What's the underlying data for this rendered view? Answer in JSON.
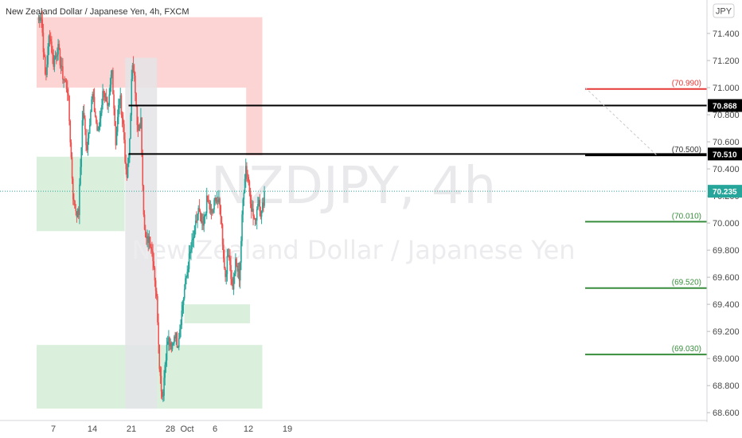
{
  "header": {
    "symbol_line": "New Zealand Dollar / Japanese Yen, 4h, FXCM",
    "currency_button": "JPY"
  },
  "watermark": {
    "symbol": "NZDJPY, 4h",
    "name": "New Zealand Dollar / Japanese Yen"
  },
  "colors": {
    "up": "#26a69a",
    "down": "#ef5350",
    "supply_zone": "#fccfce",
    "demand_zone": "#d6eed9",
    "gray_zone": "#e4e4e8",
    "resistance_line": "#e53935",
    "support_line": "#388e3c",
    "black_line": "#000000",
    "price_badge": "#26a69a"
  },
  "chart_data": {
    "type": "candlestick",
    "title": "New Zealand Dollar / Japanese Yen, 4h, FXCM",
    "y_axis": {
      "ylim": [
        68.56,
        71.6
      ],
      "ticks": [
        "71.400",
        "71.200",
        "71.000",
        "70.800",
        "70.600",
        "70.400",
        "70.200",
        "70.000",
        "69.800",
        "69.600",
        "69.400",
        "69.200",
        "69.000",
        "68.800",
        "68.600"
      ]
    },
    "x_axis": {
      "range_days": [
        "Sep 4",
        "Oct 21"
      ],
      "ticks": [
        {
          "label": "7",
          "day": 7
        },
        {
          "label": "14",
          "day": 14
        },
        {
          "label": "21",
          "day": 21
        },
        {
          "label": "28",
          "day": 28
        },
        {
          "label": "Oct",
          "day": 31
        },
        {
          "label": "6",
          "day": 36
        },
        {
          "label": "12",
          "day": 42
        },
        {
          "label": "19",
          "day": 49
        }
      ]
    },
    "zones": [
      {
        "kind": "supply",
        "from_day": 4,
        "to_day": 44.5,
        "y_low": 71.0,
        "y_high": 71.52
      },
      {
        "kind": "supply",
        "from_day": 41.6,
        "to_day": 44.5,
        "y_low": 70.5,
        "y_high": 71.0
      },
      {
        "kind": "demand",
        "from_day": 4,
        "to_day": 19.8,
        "y_low": 69.94,
        "y_high": 70.49
      },
      {
        "kind": "demand",
        "from_day": 20,
        "to_day": 44.5,
        "y_low": 68.63,
        "y_high": 69.1
      },
      {
        "kind": "demand",
        "from_day": 4,
        "to_day": 20,
        "y_low": 68.63,
        "y_high": 69.1
      },
      {
        "kind": "demand",
        "from_day": 30.5,
        "to_day": 42.3,
        "y_low": 69.26,
        "y_high": 69.4
      },
      {
        "kind": "gray",
        "from_day": 19.9,
        "to_day": 25.6,
        "y_low": 68.63,
        "y_high": 71.22
      }
    ],
    "levels": [
      {
        "label": "(70.990)",
        "value": 70.99,
        "kind": "resistance"
      },
      {
        "label": "(70.500)",
        "value": 70.5,
        "kind": "black"
      },
      {
        "label": "(70.010)",
        "value": 70.01,
        "kind": "support"
      },
      {
        "label": "(69.520)",
        "value": 69.52,
        "kind": "support"
      },
      {
        "label": "(69.030)",
        "value": 69.03,
        "kind": "support"
      }
    ],
    "horizontal_lines": [
      {
        "value": 70.868,
        "from_day": 20.5,
        "badge": "70.868"
      },
      {
        "value": 70.51,
        "from_day": 20.5,
        "badge": "70.510"
      }
    ],
    "last_price": {
      "value": 70.235,
      "label": "70.235"
    },
    "path_pivots": [
      [
        4.2,
        71.5
      ],
      [
        4.8,
        71.55
      ],
      [
        5.6,
        71.05
      ],
      [
        6.3,
        71.42
      ],
      [
        7.0,
        71.18
      ],
      [
        7.8,
        71.3
      ],
      [
        8.6,
        71.1
      ],
      [
        9.6,
        70.98
      ],
      [
        10.6,
        70.15
      ],
      [
        11.5,
        70.05
      ],
      [
        12.3,
        70.85
      ],
      [
        13.0,
        70.55
      ],
      [
        14.0,
        70.95
      ],
      [
        15.0,
        70.65
      ],
      [
        16.0,
        71.0
      ],
      [
        16.8,
        70.8
      ],
      [
        17.5,
        71.15
      ],
      [
        18.2,
        70.6
      ],
      [
        18.9,
        70.95
      ],
      [
        19.6,
        70.7
      ],
      [
        20.1,
        70.3
      ],
      [
        20.6,
        70.5
      ],
      [
        21.1,
        71.12
      ],
      [
        21.5,
        71.16
      ],
      [
        22.1,
        70.65
      ],
      [
        22.7,
        70.75
      ],
      [
        23.2,
        70.1
      ],
      [
        23.6,
        69.85
      ],
      [
        24.2,
        69.9
      ],
      [
        24.9,
        69.75
      ],
      [
        25.6,
        69.4
      ],
      [
        26.1,
        68.9
      ],
      [
        26.6,
        68.7
      ],
      [
        27.1,
        69.0
      ],
      [
        27.6,
        69.15
      ],
      [
        28.2,
        69.05
      ],
      [
        28.8,
        69.2
      ],
      [
        29.3,
        69.1
      ],
      [
        29.9,
        69.3
      ],
      [
        30.5,
        69.5
      ],
      [
        31.4,
        69.75
      ],
      [
        32.2,
        69.9
      ],
      [
        33.0,
        70.1
      ],
      [
        33.8,
        69.95
      ],
      [
        34.6,
        70.18
      ],
      [
        35.4,
        70.05
      ],
      [
        36.2,
        70.2
      ],
      [
        37.0,
        70.1
      ],
      [
        37.8,
        69.6
      ],
      [
        38.5,
        69.8
      ],
      [
        39.1,
        69.5
      ],
      [
        39.7,
        69.7
      ],
      [
        40.4,
        69.6
      ],
      [
        41.0,
        70.15
      ],
      [
        41.5,
        70.43
      ],
      [
        42.0,
        70.32
      ],
      [
        42.6,
        70.1
      ],
      [
        43.2,
        70.0
      ],
      [
        43.8,
        70.2
      ],
      [
        44.3,
        70.05
      ],
      [
        44.9,
        70.23
      ]
    ]
  }
}
